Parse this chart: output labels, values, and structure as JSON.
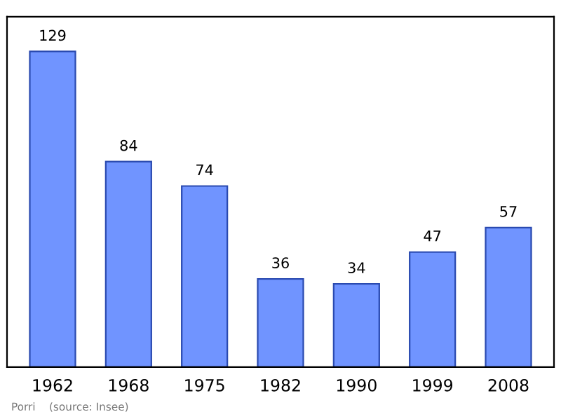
{
  "chart_data": {
    "type": "bar",
    "categories": [
      "1962",
      "1968",
      "1975",
      "1982",
      "1990",
      "1999",
      "2008"
    ],
    "values": [
      129,
      84,
      74,
      36,
      34,
      47,
      57
    ],
    "color": "#7094ff",
    "data_labels": true,
    "grid": false,
    "legend": false,
    "tick_labels": "x",
    "annotations": [
      "Porri    (source: Insee)"
    ]
  }
}
